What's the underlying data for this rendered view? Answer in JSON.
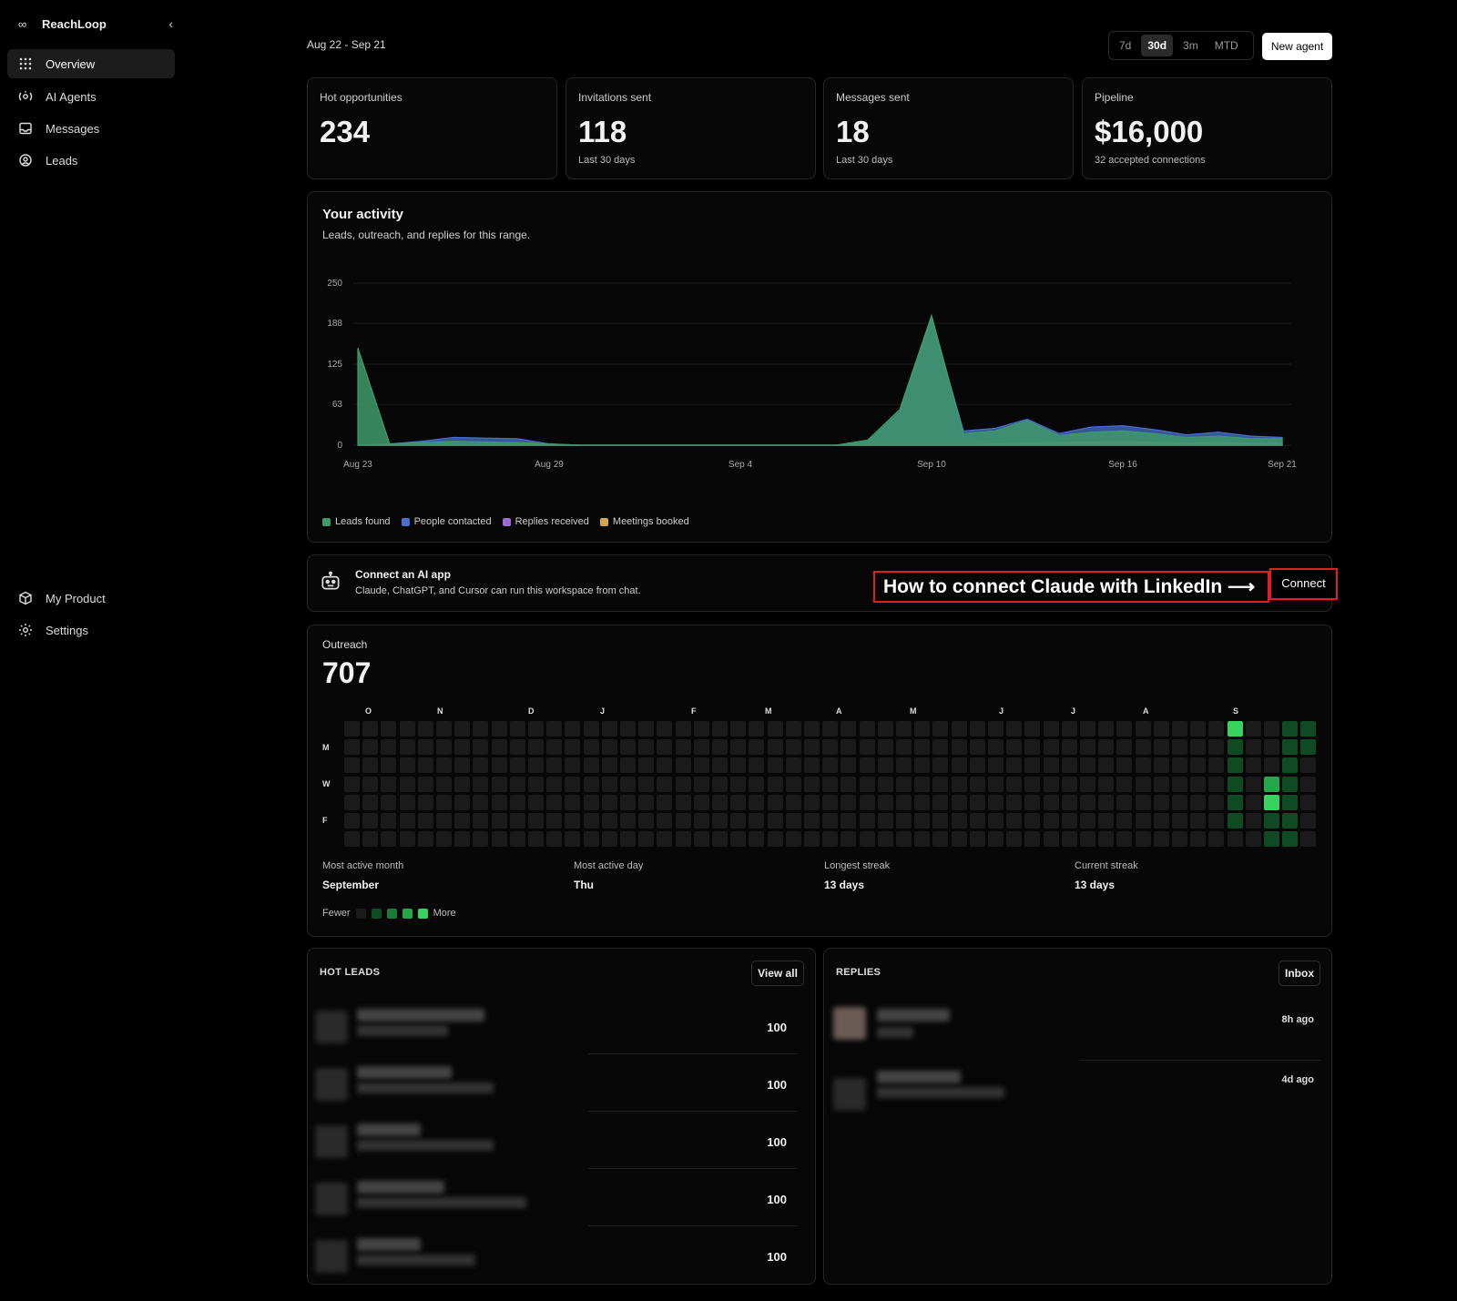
{
  "app": {
    "name": "ReachLoop"
  },
  "sidebar": {
    "top_items": [
      {
        "label": "Overview",
        "icon": "grid-icon",
        "active": true
      },
      {
        "label": "AI Agents",
        "icon": "agent-icon"
      },
      {
        "label": "Messages",
        "icon": "inbox-icon"
      },
      {
        "label": "Leads",
        "icon": "target-icon"
      }
    ],
    "bottom_items": [
      {
        "label": "My Product",
        "icon": "box-icon"
      },
      {
        "label": "Settings",
        "icon": "gear-icon"
      }
    ]
  },
  "header": {
    "date_range": "Aug 22 - Sep 21",
    "ranges": [
      "7d",
      "30d",
      "3m",
      "MTD"
    ],
    "active_range": "30d",
    "new_agent_label": "New agent"
  },
  "stats": [
    {
      "label": "Hot opportunities",
      "value": "234",
      "sub": ""
    },
    {
      "label": "Invitations sent",
      "value": "118",
      "sub": "Last 30 days"
    },
    {
      "label": "Messages sent",
      "value": "18",
      "sub": "Last 30 days"
    },
    {
      "label": "Pipeline",
      "value": "$16,000",
      "sub": "32 accepted connections"
    }
  ],
  "activity": {
    "title": "Your activity",
    "subtitle": "Leads, outreach, and replies for this range."
  },
  "chart_data": {
    "type": "area",
    "title": "Your activity",
    "x": [
      "Aug 23",
      "Aug 24",
      "Aug 25",
      "Aug 26",
      "Aug 27",
      "Aug 28",
      "Aug 29",
      "Aug 30",
      "Aug 31",
      "Sep 1",
      "Sep 2",
      "Sep 3",
      "Sep 4",
      "Sep 5",
      "Sep 6",
      "Sep 7",
      "Sep 8",
      "Sep 9",
      "Sep 10",
      "Sep 11",
      "Sep 12",
      "Sep 13",
      "Sep 14",
      "Sep 15",
      "Sep 16",
      "Sep 17",
      "Sep 18",
      "Sep 19",
      "Sep 20",
      "Sep 21"
    ],
    "x_tick_labels": [
      "Aug 23",
      "Aug 29",
      "Sep 4",
      "Sep 10",
      "Sep 16",
      "Sep 21"
    ],
    "y_ticks": [
      0,
      63,
      125,
      188,
      250
    ],
    "ylim": [
      0,
      250
    ],
    "series": [
      {
        "name": "Leads found",
        "color": "#3f9a6a",
        "values": [
          150,
          2,
          4,
          6,
          5,
          4,
          2,
          0,
          0,
          0,
          0,
          0,
          0,
          0,
          0,
          0,
          8,
          55,
          200,
          18,
          22,
          38,
          15,
          20,
          22,
          18,
          12,
          14,
          10,
          10
        ]
      },
      {
        "name": "People contacted",
        "color": "#4a6fd0",
        "values": [
          0,
          2,
          6,
          12,
          11,
          10,
          2,
          0,
          0,
          0,
          0,
          0,
          0,
          0,
          0,
          0,
          5,
          50,
          195,
          22,
          26,
          40,
          18,
          28,
          30,
          24,
          16,
          20,
          14,
          12
        ]
      },
      {
        "name": "Replies received",
        "color": "#9b6ad0",
        "values": [
          0,
          0,
          0,
          0,
          0,
          0,
          0,
          0,
          0,
          0,
          0,
          0,
          0,
          0,
          0,
          0,
          0,
          0,
          0,
          0,
          2,
          3,
          4,
          5,
          6,
          4,
          3,
          4,
          3,
          3
        ]
      },
      {
        "name": "Meetings booked",
        "color": "#d2a650",
        "values": [
          0,
          0,
          0,
          0,
          0,
          0,
          0,
          0,
          0,
          0,
          0,
          0,
          0,
          0,
          0,
          0,
          0,
          0,
          0,
          0,
          0,
          0,
          0,
          0,
          0,
          0,
          0,
          0,
          0,
          0
        ]
      }
    ]
  },
  "connect": {
    "title": "Connect an AI app",
    "subtitle": "Claude, ChatGPT, and Cursor can run this workspace from chat.",
    "promo_text": "How to connect Claude with LinkedIn  ⟶",
    "button_label": "Connect"
  },
  "outreach": {
    "label": "Outreach",
    "value": "707",
    "months": [
      "O",
      "N",
      "D",
      "J",
      "F",
      "M",
      "A",
      "M",
      "J",
      "J",
      "A",
      "S"
    ],
    "days": [
      "M",
      "W",
      "F"
    ],
    "stats": [
      {
        "label": "Most active month",
        "value": "September"
      },
      {
        "label": "Most active day",
        "value": "Thu"
      },
      {
        "label": "Longest streak",
        "value": "13 days"
      },
      {
        "label": "Current streak",
        "value": "13 days"
      }
    ],
    "scale_fewer": "Fewer",
    "scale_more": "More",
    "level_colors": [
      "#1a1a1a",
      "#0f4a25",
      "#1a7a3a",
      "#26a84a",
      "#3ad25e"
    ]
  },
  "hot_leads": {
    "title": "HOT LEADS",
    "button": "View all",
    "scores": [
      "100",
      "100",
      "100",
      "100",
      "100"
    ]
  },
  "replies": {
    "title": "REPLIES",
    "button": "Inbox",
    "times": [
      "8h ago",
      "4d ago"
    ]
  }
}
